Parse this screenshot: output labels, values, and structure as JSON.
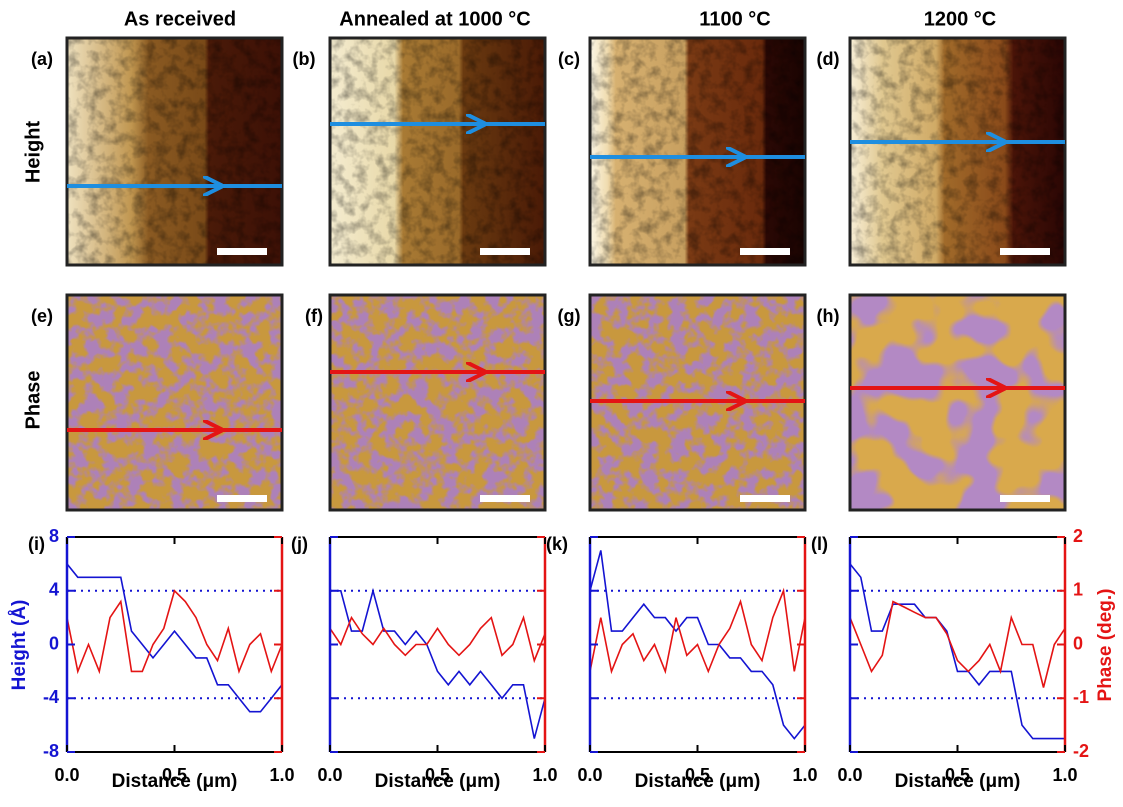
{
  "column_titles": [
    "As received",
    "Annealed at 1000 °C",
    "1100 °C",
    "1200 °C"
  ],
  "row_labels": [
    "Height",
    "Phase"
  ],
  "image_panels": {
    "height": [
      "(a)",
      "(b)",
      "(c)",
      "(d)"
    ],
    "phase": [
      "(e)",
      "(f)",
      "(g)",
      "(h)"
    ]
  },
  "chart_data": [
    {
      "type": "line",
      "label": "(i)",
      "xlabel": "Distance (μm)",
      "ylabel": "Height (Å)",
      "x": [
        0,
        0.05,
        0.1,
        0.15,
        0.2,
        0.25,
        0.3,
        0.35,
        0.4,
        0.45,
        0.5,
        0.55,
        0.6,
        0.65,
        0.7,
        0.75,
        0.8,
        0.85,
        0.9,
        0.95,
        1
      ],
      "xlim": [
        0,
        1
      ],
      "xticks": [
        {
          "value": 0,
          "label": "0.0"
        },
        0.5,
        {
          "value": 1,
          "label": "1.0"
        }
      ],
      "ylim": [
        -8,
        8
      ],
      "yticks": [
        -8,
        -4,
        0,
        4,
        8
      ],
      "y2lim": [
        -2,
        2
      ],
      "y2ticks": [
        -2,
        -1,
        0,
        1,
        2
      ],
      "hlines": [
        -4,
        4
      ],
      "series": [
        {
          "color": "#1414d2",
          "values": [
            6,
            5,
            5,
            5,
            5,
            5,
            1,
            0,
            -1,
            0,
            1,
            0,
            -1,
            -1,
            -3,
            -3,
            -4,
            -5,
            -5,
            -4,
            -3
          ]
        },
        {
          "color": "#e41414",
          "axis": "y2",
          "values": [
            0.5,
            -0.5,
            0,
            -0.5,
            0.5,
            0.8,
            -0.5,
            -0.5,
            0,
            0.3,
            1,
            0.8,
            0.5,
            0,
            -0.3,
            0.3,
            -0.5,
            0,
            0.2,
            -0.5,
            0
          ]
        }
      ]
    },
    {
      "type": "line",
      "label": "(j)",
      "xlabel": "Distance (μm)",
      "x": [
        0,
        0.05,
        0.1,
        0.15,
        0.2,
        0.25,
        0.3,
        0.35,
        0.4,
        0.45,
        0.5,
        0.55,
        0.6,
        0.65,
        0.7,
        0.75,
        0.8,
        0.85,
        0.9,
        0.95,
        1
      ],
      "xlim": [
        0,
        1
      ],
      "xticks": [
        {
          "value": 0,
          "label": "0.0"
        },
        0.5,
        {
          "value": 1,
          "label": "1.0"
        }
      ],
      "ylim": [
        -8,
        8
      ],
      "yticks": [
        -8,
        -4,
        0,
        4,
        8
      ],
      "y2lim": [
        -2,
        2
      ],
      "y2ticks": [
        -2,
        -1,
        0,
        1,
        2
      ],
      "hlines": [
        -4,
        4
      ],
      "series": [
        {
          "color": "#1414d2",
          "values": [
            4,
            4,
            1,
            1,
            4,
            1,
            1,
            0,
            1,
            0,
            -2,
            -3,
            -2,
            -3,
            -2,
            -3,
            -4,
            -3,
            -3,
            -7,
            -4
          ]
        },
        {
          "color": "#e41414",
          "axis": "y2",
          "values": [
            0.3,
            0,
            0.5,
            0.2,
            0,
            0.3,
            0,
            -0.2,
            0,
            0,
            0.3,
            0,
            -0.2,
            0,
            0.3,
            0.5,
            -0.2,
            0,
            0.5,
            -0.3,
            0.2
          ]
        }
      ]
    },
    {
      "type": "line",
      "label": "(k)",
      "xlabel": "Distance (μm)",
      "x": [
        0,
        0.05,
        0.1,
        0.15,
        0.2,
        0.25,
        0.3,
        0.35,
        0.4,
        0.45,
        0.5,
        0.55,
        0.6,
        0.65,
        0.7,
        0.75,
        0.8,
        0.85,
        0.9,
        0.95,
        1
      ],
      "xlim": [
        0,
        1
      ],
      "xticks": [
        {
          "value": 0,
          "label": "0.0"
        },
        0.5,
        {
          "value": 1,
          "label": "1.0"
        }
      ],
      "ylim": [
        -8,
        8
      ],
      "yticks": [
        -8,
        -4,
        0,
        4,
        8
      ],
      "y2lim": [
        -2,
        2
      ],
      "y2ticks": [
        -2,
        -1,
        0,
        1,
        2
      ],
      "hlines": [
        -4,
        4
      ],
      "series": [
        {
          "color": "#1414d2",
          "values": [
            4,
            7,
            1,
            1,
            2,
            3,
            2,
            2,
            1,
            2,
            2,
            0,
            0,
            -1,
            -1,
            -2,
            -2,
            -3,
            -6,
            -7,
            -6
          ]
        },
        {
          "color": "#e41414",
          "axis": "y2",
          "values": [
            -0.5,
            0.5,
            -0.5,
            0,
            0.2,
            -0.3,
            0,
            -0.5,
            0.5,
            -0.2,
            0,
            -0.5,
            0,
            0.3,
            0.8,
            0,
            -0.3,
            0.5,
            1,
            -0.5,
            0.5
          ]
        }
      ]
    },
    {
      "type": "line",
      "label": "(l)",
      "xlabel": "Distance (μm)",
      "y2label": "Phase (deg.)",
      "x": [
        0,
        0.05,
        0.1,
        0.15,
        0.2,
        0.25,
        0.3,
        0.35,
        0.4,
        0.45,
        0.5,
        0.55,
        0.6,
        0.65,
        0.7,
        0.75,
        0.8,
        0.85,
        0.9,
        0.95,
        1
      ],
      "xlim": [
        0,
        1
      ],
      "xticks": [
        {
          "value": 0,
          "label": "0.0"
        },
        0.5,
        {
          "value": 1,
          "label": "1.0"
        }
      ],
      "ylim": [
        -8,
        8
      ],
      "yticks": [
        -8,
        -4,
        0,
        4,
        8
      ],
      "y2lim": [
        -2,
        2
      ],
      "y2ticks": [
        -2,
        -1,
        0,
        1,
        2
      ],
      "hlines": [
        -4,
        4
      ],
      "series": [
        {
          "color": "#1414d2",
          "values": [
            6,
            5,
            1,
            1,
            3,
            3,
            3,
            2,
            2,
            1,
            -2,
            -2,
            -3,
            -2,
            -2,
            -2,
            -6,
            -7,
            -7,
            -7,
            -7
          ]
        },
        {
          "color": "#e41414",
          "axis": "y2",
          "values": [
            0.5,
            0,
            -0.5,
            -0.2,
            0.8,
            0.7,
            0.6,
            0.5,
            0.5,
            0.2,
            -0.3,
            -0.5,
            -0.3,
            0,
            -0.5,
            0.5,
            0,
            0,
            -0.8,
            0,
            0.3
          ]
        }
      ]
    }
  ]
}
